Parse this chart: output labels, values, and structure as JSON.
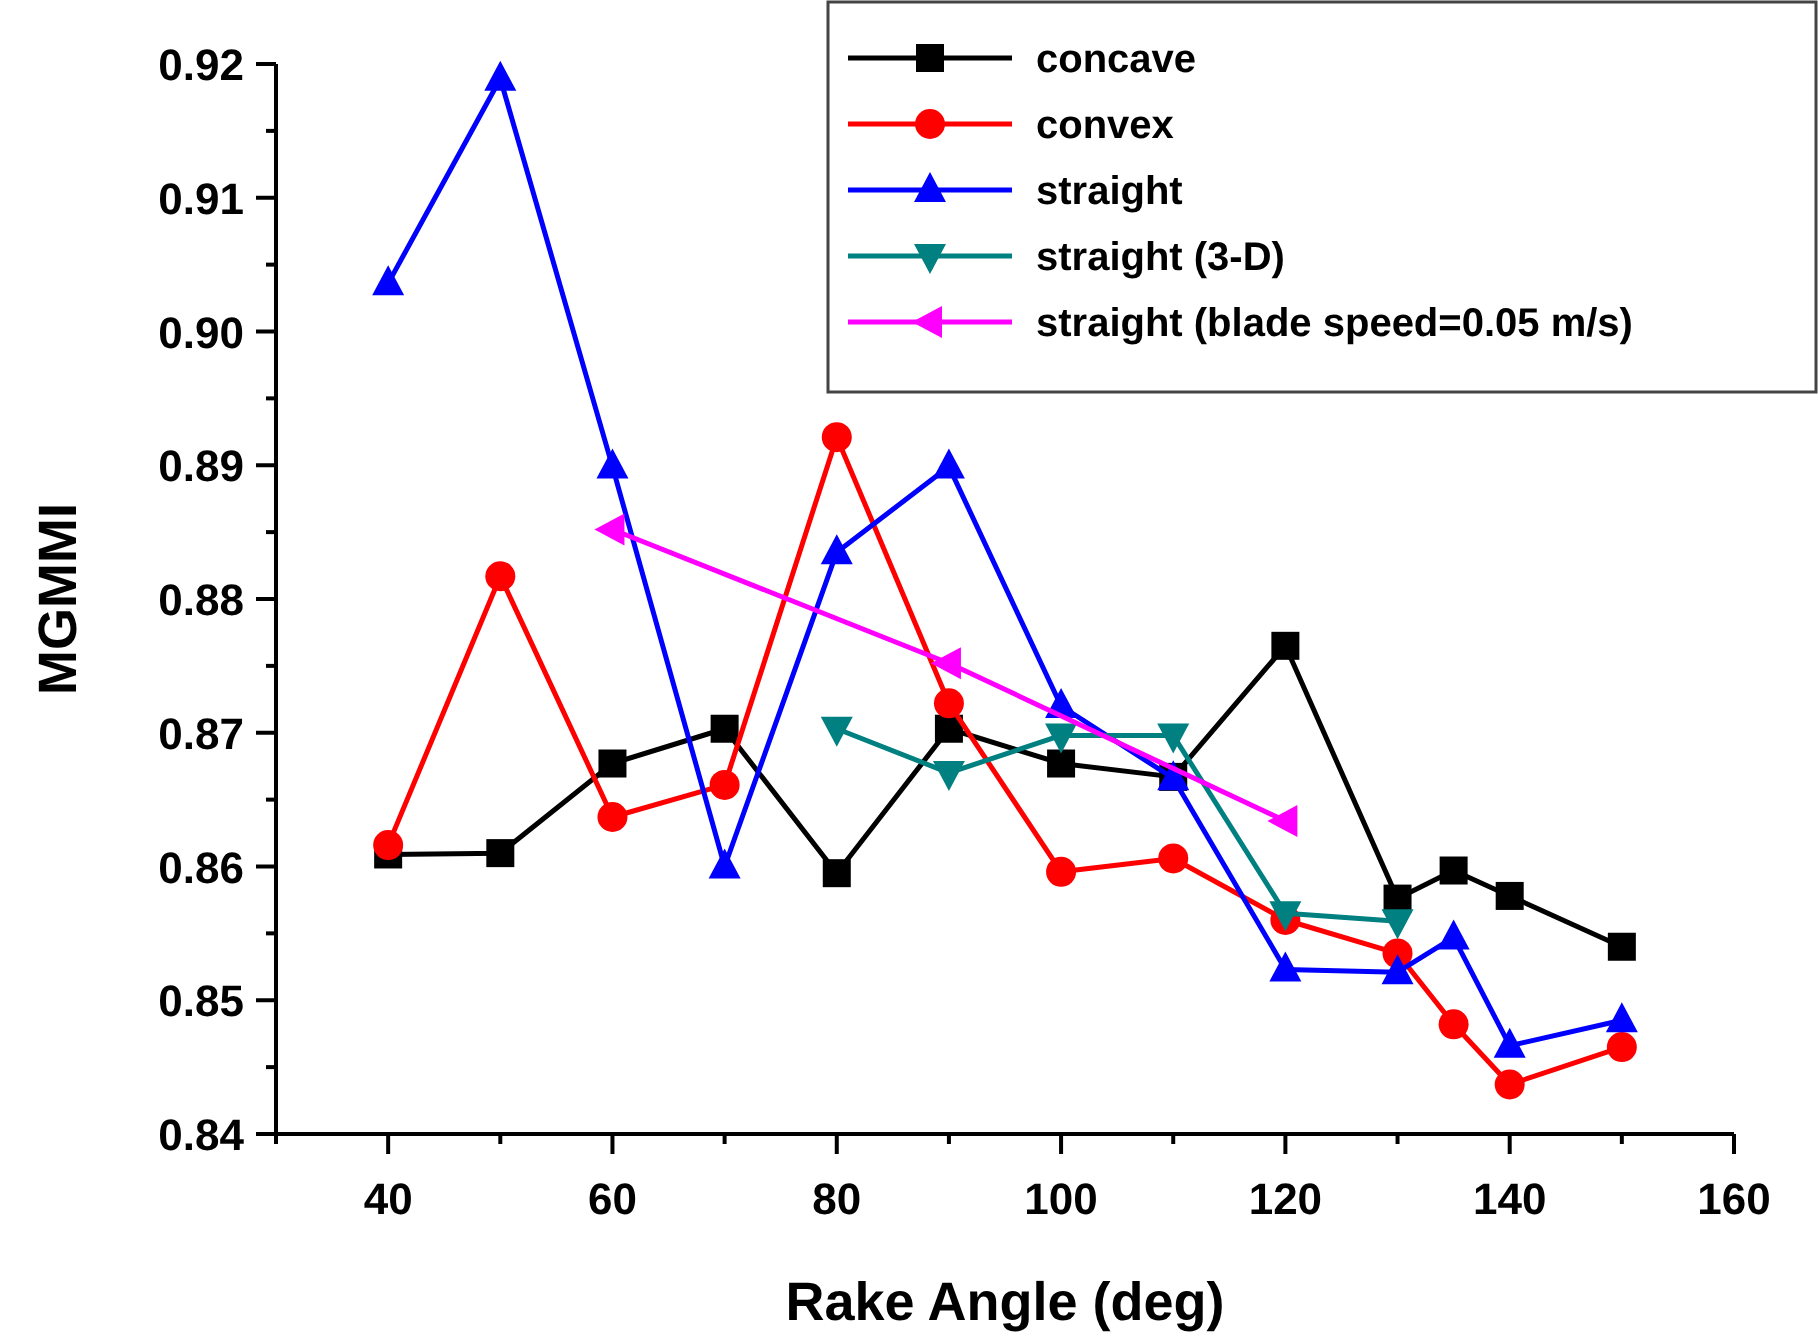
{
  "chart_data": {
    "type": "line",
    "xlabel": "Rake Angle (deg)",
    "ylabel": "MGMMI",
    "xlim": [
      30,
      160
    ],
    "xticks": [
      {
        "value": 30,
        "label": null
      },
      40,
      {
        "value": 50,
        "label": null
      },
      60,
      {
        "value": 70,
        "label": null
      },
      80,
      {
        "value": 90,
        "label": null
      },
      100,
      {
        "value": 110,
        "label": null
      },
      120,
      {
        "value": 130,
        "label": null
      },
      140,
      {
        "value": 150,
        "label": null
      },
      160
    ],
    "ylim": [
      0.84,
      0.92
    ],
    "yticks": [
      0.84,
      {
        "value": 0.845,
        "label": null
      },
      0.85,
      {
        "value": 0.855,
        "label": null
      },
      0.86,
      {
        "value": 0.865,
        "label": null
      },
      0.87,
      {
        "value": 0.875,
        "label": null
      },
      0.88,
      {
        "value": 0.885,
        "label": null
      },
      0.89,
      {
        "value": 0.895,
        "label": null
      },
      {
        "value": 0.9,
        "label": "0.90"
      },
      {
        "value": 0.905,
        "label": null
      },
      0.91,
      {
        "value": 0.915,
        "label": null
      },
      0.92
    ],
    "grid": false,
    "legend": "top right",
    "line_style": "solid",
    "series": [
      {
        "name": "concave",
        "color": "#000000",
        "marker": "square",
        "x": [
          40,
          50,
          60,
          70,
          80,
          90,
          100,
          110,
          120,
          130,
          135,
          140,
          150
        ],
        "values": [
          0.8609,
          0.861,
          0.8677,
          0.8703,
          0.8595,
          0.8703,
          0.8677,
          0.8667,
          0.8765,
          0.8576,
          0.8597,
          0.8578,
          0.854
        ]
      },
      {
        "name": "convex",
        "color": "#ff0000",
        "marker": "circle",
        "x": [
          40,
          50,
          60,
          70,
          80,
          90,
          100,
          110,
          120,
          130,
          135,
          140,
          150
        ],
        "values": [
          0.8616,
          0.8817,
          0.8637,
          0.8661,
          0.8921,
          0.8722,
          0.8596,
          0.8606,
          0.856,
          0.8535,
          0.8482,
          0.8437,
          0.8465
        ]
      },
      {
        "name": "straight",
        "color": "#0000ff",
        "marker": "triangle",
        "x": [
          40,
          50,
          60,
          70,
          80,
          90,
          100,
          110,
          120,
          130,
          135,
          140,
          150
        ],
        "values": [
          0.9036,
          0.9189,
          0.8899,
          0.86,
          0.8835,
          0.8899,
          0.872,
          0.8666,
          0.8523,
          0.8521,
          0.8547,
          0.8466,
          0.8485
        ]
      },
      {
        "name": "straight (3-D)",
        "color": "#008080",
        "marker": "triangle-down",
        "x": [
          80,
          90,
          100,
          110,
          120,
          130
        ],
        "values": [
          0.8703,
          0.867,
          0.8698,
          0.8698,
          0.8565,
          0.8559
        ]
      },
      {
        "name": "straight (blade speed=0.05 m/s)",
        "color": "#ff00ff",
        "marker": "triangle-left",
        "x": [
          60,
          90,
          120
        ],
        "values": [
          0.8852,
          0.8752,
          0.8634
        ]
      }
    ]
  }
}
